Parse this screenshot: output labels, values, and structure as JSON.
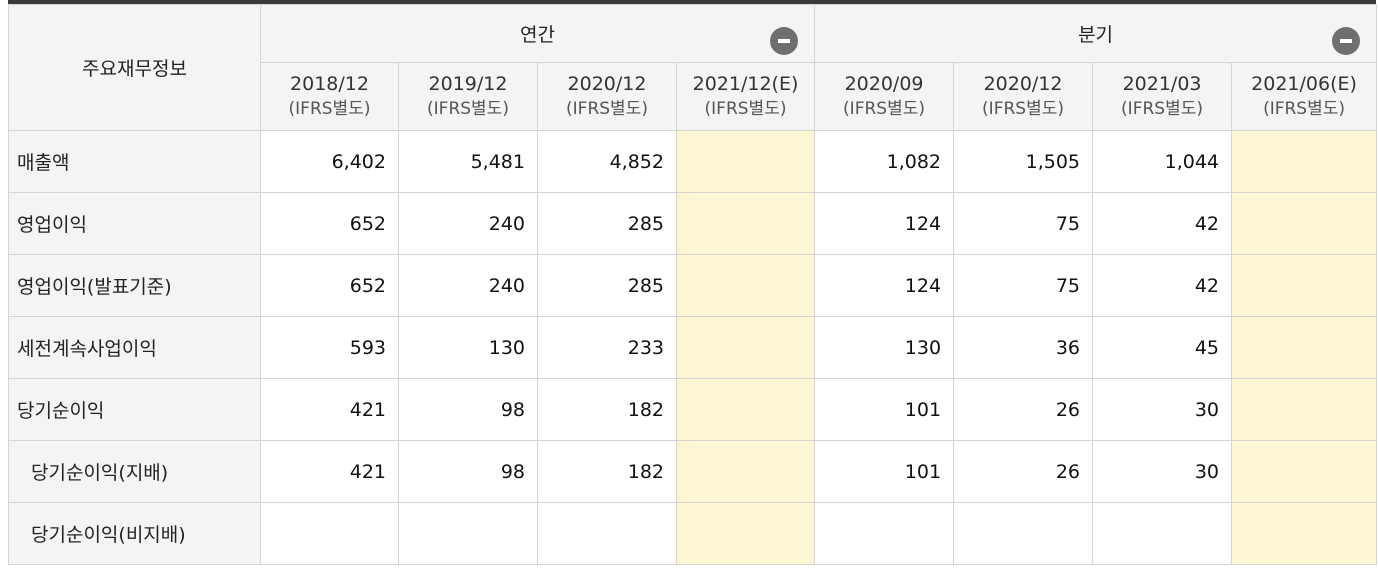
{
  "header": {
    "row_label": "주요재무정보",
    "annual_label": "연간",
    "quarter_label": "분기",
    "periods": [
      {
        "date": "2018/12",
        "basis": "(IFRS별도)"
      },
      {
        "date": "2019/12",
        "basis": "(IFRS별도)"
      },
      {
        "date": "2020/12",
        "basis": "(IFRS별도)"
      },
      {
        "date": "2021/12(E)",
        "basis": "(IFRS별도)"
      },
      {
        "date": "2020/09",
        "basis": "(IFRS별도)"
      },
      {
        "date": "2020/12",
        "basis": "(IFRS별도)"
      },
      {
        "date": "2021/03",
        "basis": "(IFRS별도)"
      },
      {
        "date": "2021/06(E)",
        "basis": "(IFRS별도)"
      }
    ]
  },
  "rows": [
    {
      "label": "매출액",
      "values": [
        "6,402",
        "5,481",
        "4,852",
        "",
        "1,082",
        "1,505",
        "1,044",
        ""
      ]
    },
    {
      "label": "영업이익",
      "values": [
        "652",
        "240",
        "285",
        "",
        "124",
        "75",
        "42",
        ""
      ]
    },
    {
      "label": "영업이익(발표기준)",
      "values": [
        "652",
        "240",
        "285",
        "",
        "124",
        "75",
        "42",
        ""
      ]
    },
    {
      "label": "세전계속사업이익",
      "values": [
        "593",
        "130",
        "233",
        "",
        "130",
        "36",
        "45",
        ""
      ]
    },
    {
      "label": "당기순이익",
      "values": [
        "421",
        "98",
        "182",
        "",
        "101",
        "26",
        "30",
        ""
      ]
    },
    {
      "label": "당기순이익(지배)",
      "values": [
        "421",
        "98",
        "182",
        "",
        "101",
        "26",
        "30",
        ""
      ]
    },
    {
      "label": "당기순이익(비지배)",
      "values": [
        "",
        "",
        "",
        "",
        "",
        "",
        "",
        ""
      ]
    }
  ],
  "colors": {
    "estimate_bg": "#fdf6d3",
    "header_bg": "#f4f4f4",
    "top_border": "#3a3a3a"
  }
}
